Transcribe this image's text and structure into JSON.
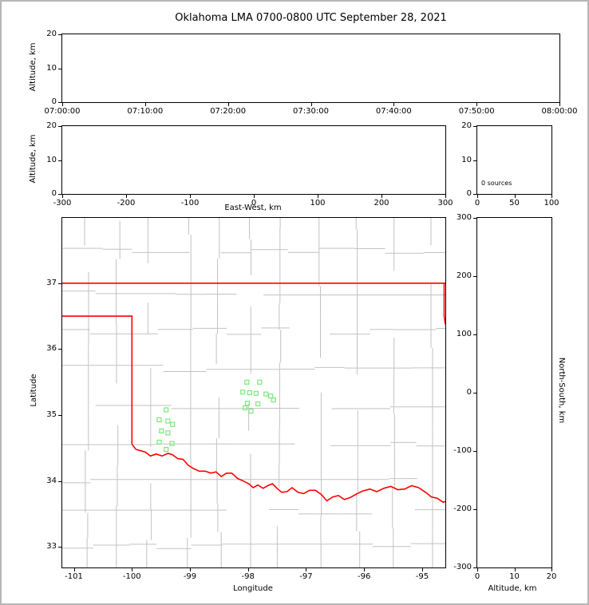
{
  "title": "Oklahoma LMA 0700-0800 UTC September 28, 2021",
  "colors": {
    "state_border": "#ff0000",
    "county": "#c2c2c2",
    "station": "#7ce87c",
    "axis": "#000000",
    "background": "#ffffff",
    "frame": "#b6b6b6"
  },
  "chart_data": [
    {
      "id": "time_height",
      "type": "scatter",
      "xlabel": "",
      "ylabel": "Altitude, km",
      "xtick_labels": [
        "07:00:00",
        "07:10:00",
        "07:20:00",
        "07:30:00",
        "07:40:00",
        "07:50:00",
        "08:00:00"
      ],
      "ylim": [
        0,
        20
      ],
      "yticks": [
        0,
        10,
        20
      ],
      "points": []
    },
    {
      "id": "ew_height",
      "type": "scatter",
      "xlabel": "East-West, km",
      "ylabel": "Altitude, km",
      "xlim": [
        -300,
        300
      ],
      "xticks": [
        -300,
        -200,
        -100,
        0,
        100,
        200,
        300
      ],
      "ylim": [
        0,
        20
      ],
      "yticks": [
        0,
        10,
        20
      ],
      "points": []
    },
    {
      "id": "alt_histogram",
      "type": "line",
      "annotation": "0 sources",
      "xlim": [
        0,
        100
      ],
      "xticks": [
        0,
        50,
        100
      ],
      "ylim": [
        0,
        20
      ],
      "yticks": [
        0,
        10,
        20
      ],
      "points": []
    },
    {
      "id": "plan_view_map",
      "type": "scatter",
      "xlabel": "Longitude",
      "ylabel": "Latitude",
      "xlim": [
        -101.2,
        -94.6
      ],
      "ylim": [
        32.69,
        37.99
      ],
      "xticks": [
        -101,
        -100,
        -99,
        -98,
        -97,
        -96,
        -95
      ],
      "yticks": [
        33,
        34,
        35,
        36,
        37
      ],
      "sources": [],
      "stations": [
        [
          -98.02,
          35.5
        ],
        [
          -97.8,
          35.5
        ],
        [
          -98.09,
          35.35
        ],
        [
          -97.97,
          35.34
        ],
        [
          -97.86,
          35.33
        ],
        [
          -97.69,
          35.32
        ],
        [
          -97.61,
          35.29
        ],
        [
          -97.56,
          35.23
        ],
        [
          -98.01,
          35.18
        ],
        [
          -97.83,
          35.17
        ],
        [
          -98.05,
          35.11
        ],
        [
          -97.95,
          35.06
        ],
        [
          -99.41,
          35.08
        ],
        [
          -99.53,
          34.93
        ],
        [
          -99.38,
          34.91
        ],
        [
          -99.3,
          34.86
        ],
        [
          -99.49,
          34.76
        ],
        [
          -99.38,
          34.73
        ],
        [
          -99.53,
          34.59
        ],
        [
          -99.31,
          34.57
        ],
        [
          -99.41,
          34.48
        ]
      ],
      "state_lines": [
        [
          [
            -101.2,
            37.0
          ],
          [
            -94.6,
            37.0
          ]
        ],
        [
          [
            -101.2,
            36.5
          ],
          [
            -100.0,
            36.5
          ],
          [
            -100.0,
            34.56
          ]
        ],
        [
          [
            -94.62,
            37.0
          ],
          [
            -94.62,
            36.5
          ],
          [
            -94.6,
            36.38
          ]
        ],
        [
          [
            -100.0,
            34.56
          ],
          [
            -99.93,
            34.48
          ],
          [
            -99.85,
            34.46
          ],
          [
            -99.77,
            34.44
          ],
          [
            -99.68,
            34.38
          ],
          [
            -99.58,
            34.41
          ],
          [
            -99.48,
            34.38
          ],
          [
            -99.38,
            34.42
          ],
          [
            -99.3,
            34.4
          ],
          [
            -99.21,
            34.34
          ],
          [
            -99.12,
            34.33
          ],
          [
            -99.03,
            34.24
          ],
          [
            -98.94,
            34.19
          ],
          [
            -98.84,
            34.15
          ],
          [
            -98.74,
            34.15
          ],
          [
            -98.64,
            34.12
          ],
          [
            -98.55,
            34.14
          ],
          [
            -98.46,
            34.07
          ],
          [
            -98.37,
            34.12
          ],
          [
            -98.28,
            34.12
          ],
          [
            -98.18,
            34.04
          ],
          [
            -98.08,
            34.0
          ],
          [
            -97.99,
            33.96
          ],
          [
            -97.91,
            33.9
          ],
          [
            -97.83,
            33.94
          ],
          [
            -97.74,
            33.89
          ],
          [
            -97.66,
            33.93
          ],
          [
            -97.58,
            33.96
          ],
          [
            -97.5,
            33.89
          ],
          [
            -97.42,
            33.83
          ],
          [
            -97.33,
            33.84
          ],
          [
            -97.24,
            33.9
          ],
          [
            -97.14,
            33.83
          ],
          [
            -97.04,
            33.81
          ],
          [
            -96.94,
            33.86
          ],
          [
            -96.84,
            33.86
          ],
          [
            -96.74,
            33.8
          ],
          [
            -96.64,
            33.7
          ],
          [
            -96.54,
            33.76
          ],
          [
            -96.44,
            33.78
          ],
          [
            -96.34,
            33.72
          ],
          [
            -96.24,
            33.75
          ],
          [
            -96.14,
            33.8
          ],
          [
            -96.02,
            33.85
          ],
          [
            -95.9,
            33.88
          ],
          [
            -95.78,
            33.84
          ],
          [
            -95.66,
            33.89
          ],
          [
            -95.54,
            33.92
          ],
          [
            -95.42,
            33.87
          ],
          [
            -95.3,
            33.88
          ],
          [
            -95.18,
            33.93
          ],
          [
            -95.06,
            33.9
          ],
          [
            -94.94,
            33.83
          ],
          [
            -94.84,
            33.76
          ],
          [
            -94.74,
            33.74
          ],
          [
            -94.64,
            33.68
          ],
          [
            -94.6,
            33.69
          ]
        ]
      ]
    },
    {
      "id": "ns_height",
      "type": "scatter",
      "xlabel": "Altitude, km",
      "ylabel": "North-South, km",
      "xlim": [
        0,
        20
      ],
      "xticks": [
        0,
        10,
        20
      ],
      "ylim": [
        -300,
        300
      ],
      "yticks": [
        -300,
        -200,
        -100,
        0,
        100,
        200,
        300
      ],
      "points": []
    }
  ]
}
